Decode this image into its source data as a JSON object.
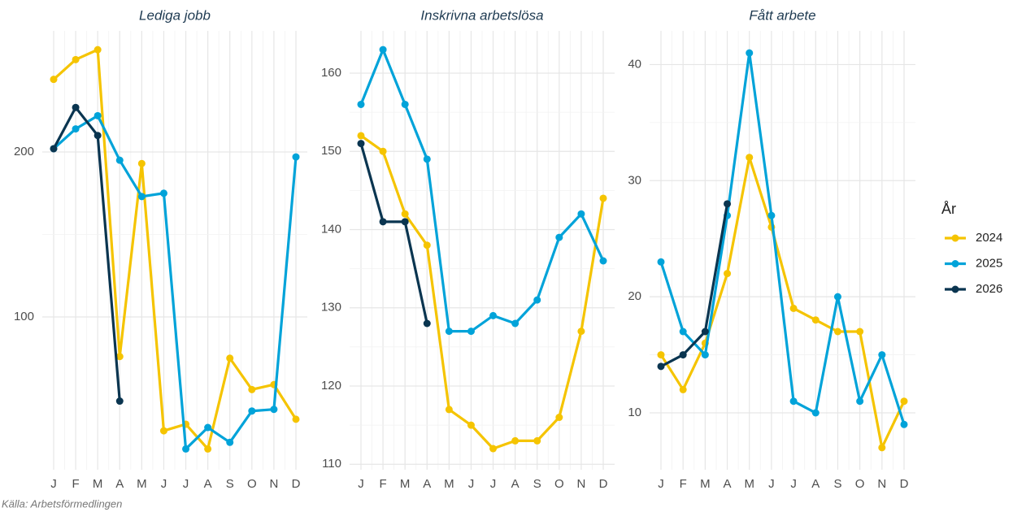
{
  "chart_data": [
    {
      "type": "line",
      "title": "Lediga jobb",
      "categories": [
        "J",
        "F",
        "M",
        "A",
        "M",
        "J",
        "J",
        "A",
        "S",
        "O",
        "N",
        "D"
      ],
      "ylim": [
        7.4,
        273.4
      ],
      "yticks": [
        100,
        200
      ],
      "grid": true,
      "series": [
        {
          "name": "2024",
          "color": "#f5c400",
          "values": [
            244,
            256,
            262,
            76,
            193,
            31,
            35,
            20,
            75,
            56,
            59,
            38
          ]
        },
        {
          "name": "2025",
          "color": "#00a3d9",
          "values": [
            202,
            214,
            222,
            195,
            173,
            175,
            20,
            33,
            24,
            43,
            44,
            197
          ]
        },
        {
          "name": "2026",
          "color": "#0a3550",
          "values": [
            202,
            227,
            210,
            49,
            null,
            null,
            null,
            null,
            null,
            null,
            null,
            null
          ]
        }
      ]
    },
    {
      "type": "line",
      "title": "Inskrivna arbetslösa",
      "categories": [
        "J",
        "F",
        "M",
        "A",
        "M",
        "J",
        "J",
        "A",
        "S",
        "O",
        "N",
        "D"
      ],
      "ylim": [
        109.3,
        165.4
      ],
      "yticks": [
        110,
        120,
        130,
        140,
        150,
        160
      ],
      "grid": true,
      "series": [
        {
          "name": "2024",
          "color": "#f5c400",
          "values": [
            152,
            150,
            142,
            138,
            117,
            115,
            112,
            113,
            113,
            116,
            127,
            144
          ]
        },
        {
          "name": "2025",
          "color": "#00a3d9",
          "values": [
            156,
            163,
            156,
            149,
            127,
            127,
            129,
            128,
            131,
            139,
            142,
            136
          ]
        },
        {
          "name": "2026",
          "color": "#0a3550",
          "values": [
            151,
            141,
            141,
            128,
            null,
            null,
            null,
            null,
            null,
            null,
            null,
            null
          ]
        }
      ]
    },
    {
      "type": "line",
      "title": "Fått arbete",
      "categories": [
        "J",
        "F",
        "M",
        "A",
        "M",
        "J",
        "J",
        "A",
        "S",
        "O",
        "N",
        "D"
      ],
      "ylim": [
        5.1,
        42.9
      ],
      "yticks": [
        10,
        20,
        30,
        40
      ],
      "grid": true,
      "series": [
        {
          "name": "2024",
          "color": "#f5c400",
          "values": [
            15,
            12,
            16,
            22,
            32,
            26,
            19,
            18,
            17,
            17,
            7,
            11
          ]
        },
        {
          "name": "2025",
          "color": "#00a3d9",
          "values": [
            23,
            17,
            15,
            27,
            41,
            27,
            11,
            10,
            20,
            11,
            15,
            9
          ]
        },
        {
          "name": "2026",
          "color": "#0a3550",
          "values": [
            14,
            15,
            17,
            28,
            null,
            null,
            null,
            null,
            null,
            null,
            null,
            null
          ]
        }
      ]
    }
  ],
  "legend_title": "År",
  "caption": "Källa: Arbetsförmedlingen"
}
